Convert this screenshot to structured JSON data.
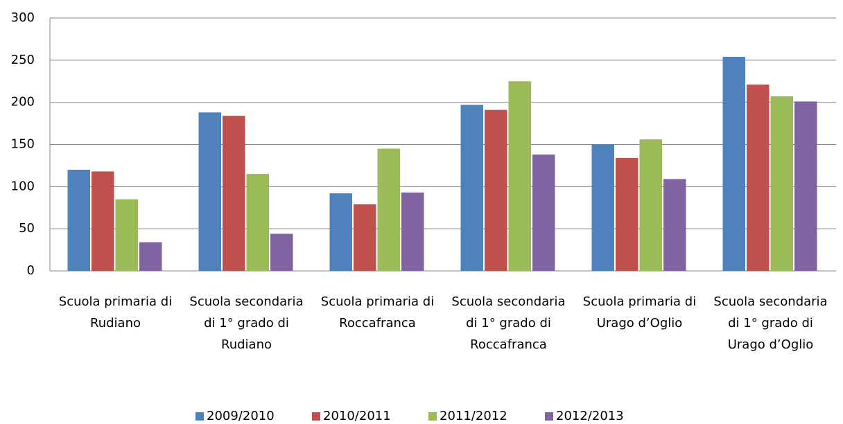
{
  "chart_data": {
    "type": "bar",
    "categories": [
      "Scuola primaria di Rudiano",
      "Scuola secondaria di 1° grado di Rudiano",
      "Scuola primaria di Roccafranca",
      "Scuola secondaria di 1° grado di Roccafranca",
      "Scuola primaria di Urago d’Oglio",
      "Scuola secondaria di 1° grado di Urago d’Oglio"
    ],
    "series": [
      {
        "name": "2009/2010",
        "color": "#4f81bd",
        "values": [
          120,
          188,
          92,
          197,
          150,
          254
        ]
      },
      {
        "name": "2010/2011",
        "color": "#c0504d",
        "values": [
          118,
          184,
          79,
          191,
          134,
          221
        ]
      },
      {
        "name": "2011/2012",
        "color": "#9bbb59",
        "values": [
          85,
          115,
          145,
          225,
          156,
          207
        ]
      },
      {
        "name": "2012/2013",
        "color": "#8064a2",
        "values": [
          34,
          44,
          93,
          138,
          109,
          201
        ]
      }
    ],
    "ylim": [
      0,
      300
    ],
    "yticks": [
      0,
      50,
      100,
      150,
      200,
      250,
      300
    ],
    "grid": true,
    "legend": "bottom"
  }
}
